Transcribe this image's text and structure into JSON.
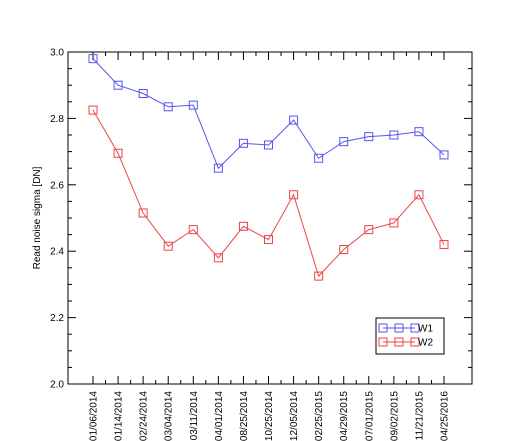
{
  "chart_data": {
    "type": "line",
    "title": "",
    "xlabel": "",
    "ylabel": "Read noise sigma [DN]",
    "ylim": [
      2.0,
      3.0
    ],
    "yticks": [
      "2.0",
      "2.2",
      "2.4",
      "2.6",
      "2.8",
      "3.0"
    ],
    "grid": false,
    "legend_position": "bottom-right",
    "categories": [
      "01/06/2014",
      "01/14/2014",
      "02/24/2014",
      "03/04/2014",
      "03/11/2014",
      "04/01/2014",
      "08/25/2014",
      "10/25/2014",
      "12/05/2014",
      "02/25/2015",
      "04/29/2015",
      "07/01/2015",
      "09/02/2015",
      "11/21/2015",
      "04/25/2016"
    ],
    "series": [
      {
        "name": "W1",
        "color": "#5555ee",
        "marker": "square",
        "values": [
          2.98,
          2.9,
          2.875,
          2.835,
          2.84,
          2.65,
          2.725,
          2.72,
          2.795,
          2.68,
          2.73,
          2.745,
          2.75,
          2.76,
          2.69
        ]
      },
      {
        "name": "W2",
        "color": "#ee4444",
        "marker": "square",
        "values": [
          2.825,
          2.695,
          2.515,
          2.415,
          2.465,
          2.38,
          2.475,
          2.435,
          2.57,
          2.325,
          2.405,
          2.465,
          2.485,
          2.57,
          2.42
        ]
      }
    ]
  }
}
